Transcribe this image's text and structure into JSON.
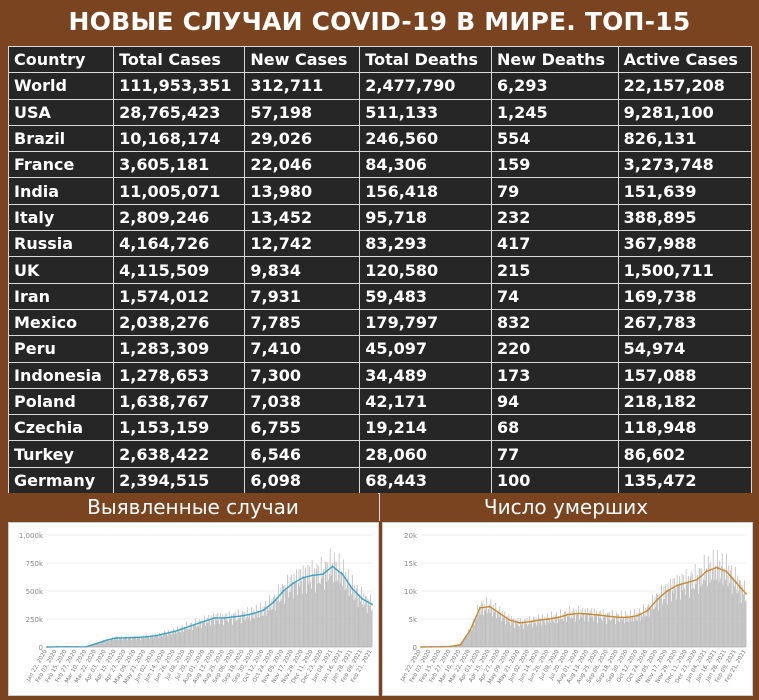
{
  "title": "НОВЫЕ СЛУЧАИ COVID-19 В МИРЕ. ТОП-15",
  "table": {
    "headers": [
      "Country",
      "Total Cases",
      "New Cases",
      "Total Deaths",
      "New Deaths",
      "Active Cases"
    ],
    "rows": [
      [
        "World",
        "111,953,351",
        "312,711",
        "2,477,790",
        "6,293",
        "22,157,208"
      ],
      [
        "USA",
        "28,765,423",
        "57,198",
        "511,133",
        "1,245",
        "9,281,100"
      ],
      [
        "Brazil",
        "10,168,174",
        "29,026",
        "246,560",
        "554",
        "826,131"
      ],
      [
        "France",
        "3,605,181",
        "22,046",
        "84,306",
        "159",
        "3,273,748"
      ],
      [
        "India",
        "11,005,071",
        "13,980",
        "156,418",
        "79",
        "151,639"
      ],
      [
        "Italy",
        "2,809,246",
        "13,452",
        "95,718",
        "232",
        "388,895"
      ],
      [
        "Russia",
        "4,164,726",
        "12,742",
        "83,293",
        "417",
        "367,988"
      ],
      [
        "UK",
        "4,115,509",
        "9,834",
        "120,580",
        "215",
        "1,500,711"
      ],
      [
        "Iran",
        "1,574,012",
        "7,931",
        "59,483",
        "74",
        "169,738"
      ],
      [
        "Mexico",
        "2,038,276",
        "7,785",
        "179,797",
        "832",
        "267,783"
      ],
      [
        "Peru",
        "1,283,309",
        "7,410",
        "45,097",
        "220",
        "54,974"
      ],
      [
        "Indonesia",
        "1,278,653",
        "7,300",
        "34,489",
        "173",
        "157,088"
      ],
      [
        "Poland",
        "1,638,767",
        "7,038",
        "42,171",
        "94",
        "218,182"
      ],
      [
        "Czechia",
        "1,153,159",
        "6,755",
        "19,214",
        "68",
        "118,948"
      ],
      [
        "Turkey",
        "2,638,422",
        "6,546",
        "28,060",
        "77",
        "86,602"
      ],
      [
        "Germany",
        "2,394,515",
        "6,098",
        "68,443",
        "100",
        "135,472"
      ]
    ]
  },
  "colors": {
    "background": "#7a4420",
    "table_bg": "#262626",
    "header_yellow": "#ffff33",
    "header_pink": "#ff7f7f",
    "cases_line": "#3ba3c4",
    "deaths_line": "#c98a2e",
    "bars": "#bfbfbf"
  },
  "chart_data": [
    {
      "type": "bar",
      "title": "Выявленные случаи",
      "series": [
        {
          "name": "",
          "type": "line"
        }
      ],
      "ylim": [
        0,
        1000000
      ],
      "yticks": [
        "0",
        "250k",
        "500k",
        "750k",
        "1,000k"
      ],
      "xticks": [
        "Jan 22, 2020",
        "Feb 03, 2020",
        "Feb 15, 2020",
        "Feb 27, 2020",
        "Mar 10, 2020",
        "Mar 22, 2020",
        "Apr 03, 2020",
        "Apr 15, 2020",
        "Apr 27, 2020",
        "May 09, 2020",
        "May 21, 2020",
        "Jun 02, 2020",
        "Jun 14, 2020",
        "Jun 26, 2020",
        "Jul 08, 2020",
        "Jul 20, 2020",
        "Aug 01, 2020",
        "Aug 13, 2020",
        "Aug 25, 2020",
        "Sep 06, 2020",
        "Sep 18, 2020",
        "Sep 30, 2020",
        "Oct 12, 2020",
        "Oct 24, 2020",
        "Nov 05, 2020",
        "Nov 17, 2020",
        "Nov 29, 2020",
        "Dec 11, 2020",
        "Dec 23, 2020",
        "Jan 04, 2021",
        "Jan 16, 2021",
        "Jan 28, 2021",
        "Feb 09, 2021",
        "Feb 21, 2021"
      ],
      "values": [
        0,
        2000,
        2500,
        2000,
        3000,
        30000,
        60000,
        80000,
        82000,
        85000,
        90000,
        100000,
        120000,
        140000,
        170000,
        200000,
        230000,
        260000,
        260000,
        270000,
        280000,
        300000,
        330000,
        400000,
        500000,
        570000,
        620000,
        640000,
        650000,
        720000,
        650000,
        520000,
        430000,
        380000
      ]
    },
    {
      "type": "bar",
      "title": "Число умерших",
      "series": [
        {
          "name": "",
          "type": "line"
        }
      ],
      "ylim": [
        0,
        20000
      ],
      "yticks": [
        "0",
        "5k",
        "10k",
        "15k",
        "20k"
      ],
      "xticks": [
        "Jan 22, 2020",
        "Feb 03, 2020",
        "Feb 15, 2020",
        "Feb 27, 2020",
        "Mar 10, 2020",
        "Mar 22, 2020",
        "Apr 03, 2020",
        "Apr 15, 2020",
        "Apr 27, 2020",
        "May 09, 2020",
        "May 21, 2020",
        "Jun 02, 2020",
        "Jun 14, 2020",
        "Jun 26, 2020",
        "Jul 08, 2020",
        "Jul 20, 2020",
        "Aug 01, 2020",
        "Aug 13, 2020",
        "Aug 25, 2020",
        "Sep 06, 2020",
        "Sep 18, 2020",
        "Sep 30, 2020",
        "Oct 12, 2020",
        "Oct 24, 2020",
        "Nov 05, 2020",
        "Nov 17, 2020",
        "Nov 29, 2020",
        "Dec 11, 2020",
        "Dec 23, 2020",
        "Jan 04, 2021",
        "Jan 16, 2021",
        "Jan 28, 2021",
        "Feb 09, 2021",
        "Feb 21, 2021"
      ],
      "values": [
        0,
        30,
        50,
        100,
        400,
        3000,
        7000,
        7200,
        6000,
        4800,
        4300,
        4500,
        4800,
        5000,
        5300,
        5800,
        6000,
        5900,
        5700,
        5500,
        5300,
        5300,
        5600,
        6500,
        8500,
        10000,
        11000,
        11500,
        12000,
        13500,
        14200,
        13500,
        11500,
        9500
      ]
    }
  ]
}
